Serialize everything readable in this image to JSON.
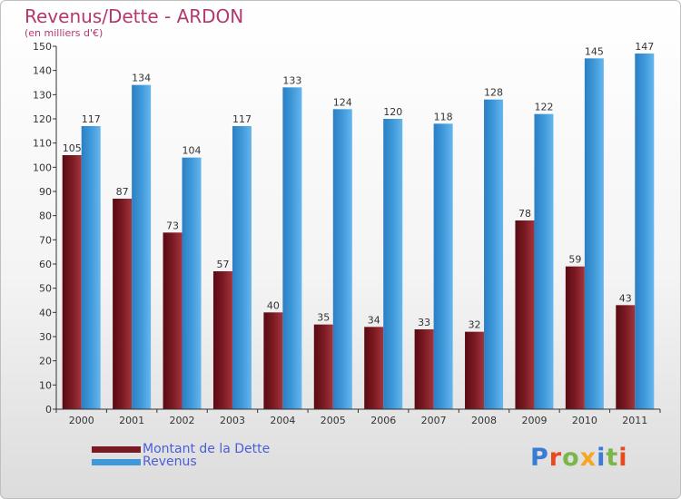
{
  "header": {
    "title": "Revenus/Dette - ARDON",
    "subtitle": "(en milliers d'€)"
  },
  "logo": {
    "text": "Proxiti",
    "colors": [
      "#3a7bd5",
      "#e8491d",
      "#7ab648",
      "#f5a623",
      "#3a7bd5",
      "#7ab648",
      "#e8491d"
    ]
  },
  "colors": {
    "dette": "#7a1a22",
    "revenus": "#3f99d9",
    "axis": "#333333",
    "grid": "#cccccc",
    "labels": "#333333"
  },
  "chart_data": {
    "type": "bar",
    "title": "Revenus/Dette - ARDON",
    "subtitle": "(en milliers d'€)",
    "categories": [
      "2000",
      "2001",
      "2002",
      "2003",
      "2004",
      "2005",
      "2006",
      "2007",
      "2008",
      "2009",
      "2010",
      "2011"
    ],
    "series": [
      {
        "name": "Montant de la Dette",
        "values": [
          105,
          87,
          73,
          57,
          40,
          35,
          34,
          33,
          32,
          78,
          59,
          43
        ]
      },
      {
        "name": "Revenus",
        "values": [
          117,
          134,
          104,
          117,
          133,
          124,
          120,
          118,
          128,
          122,
          145,
          147
        ]
      }
    ],
    "ylim": [
      0,
      150
    ],
    "yticks": [
      0,
      10,
      20,
      30,
      40,
      50,
      60,
      70,
      80,
      90,
      100,
      110,
      120,
      130,
      140,
      150
    ],
    "grid": false,
    "legend": "bottom-left"
  }
}
